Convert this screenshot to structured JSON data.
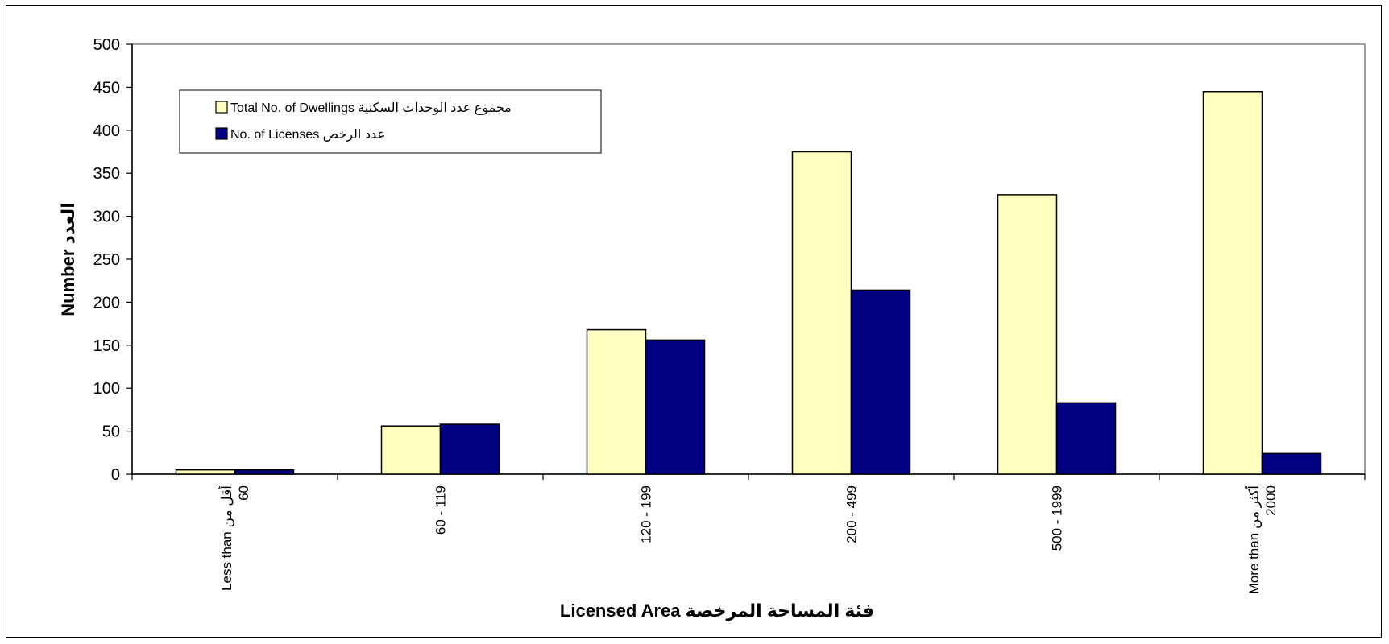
{
  "chart_data": {
    "type": "bar",
    "categories": [
      [
        "Less than أقل من",
        "60"
      ],
      [
        "60  -  119"
      ],
      [
        "120 - 199"
      ],
      [
        "200 - 499"
      ],
      [
        "500 - 1999"
      ],
      [
        "More than أكثر من",
        "2000"
      ]
    ],
    "series": [
      {
        "name": "Total No. of  Dwellings مجموع عدد  الوحدات السكنية",
        "color": "#ffffc0",
        "values": [
          5,
          56,
          168,
          375,
          325,
          445
        ]
      },
      {
        "name": "No. of  Licenses عدد الرخص",
        "color": "#000080",
        "values": [
          5,
          58,
          156,
          214,
          83,
          24
        ]
      }
    ],
    "xlabel": "Licensed Area فئة المساحة المرخصة",
    "ylabel": "Number العدد",
    "ylim": [
      0,
      500
    ],
    "yticks": [
      0,
      50,
      100,
      150,
      200,
      250,
      300,
      350,
      400,
      450,
      500
    ],
    "legend_position": "top-left",
    "grid": false
  }
}
